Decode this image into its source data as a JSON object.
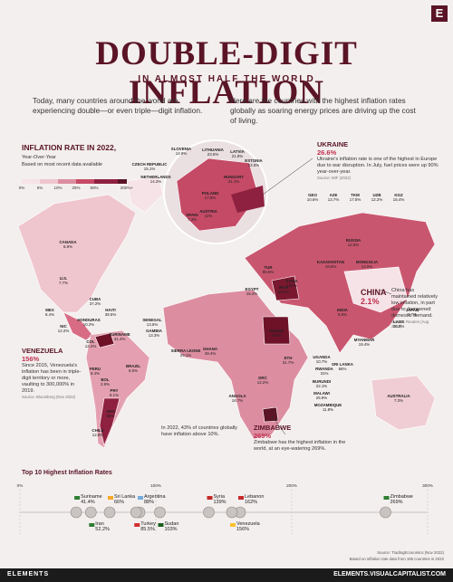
{
  "header": {
    "logo": "E",
    "title": "DOUBLE-DIGIT INFLATION",
    "subtitle": "IN ALMOST HALF THE WORLD"
  },
  "intro": [
    "Today, many countries around the world are experiencing double—or even triple—digit inflation.",
    "Here are the countries with the highest inflation rates globally as soaring energy prices are driving up the cost of living."
  ],
  "legend": {
    "title": "INFLATION RATE IN 2022,",
    "subtitle": "Year-Over-Year",
    "note": "Based on most recent data available",
    "scale": [
      "0%",
      "5%",
      "10%",
      "25%",
      "50%",
      "200%+"
    ]
  },
  "map_labels": [
    {
      "name": "CANADA",
      "value": "6.9%"
    },
    {
      "name": "U.S.",
      "value": "7.7%"
    },
    {
      "name": "MEX",
      "value": "8.4%"
    },
    {
      "name": "CUBA",
      "value": "37.2%"
    },
    {
      "name": "HAITI",
      "value": "38.5%"
    },
    {
      "name": "HONDURAS",
      "value": "10.2%"
    },
    {
      "name": "NIC",
      "value": "12.2%"
    },
    {
      "name": "COL",
      "value": "12.2%"
    },
    {
      "name": "SURINAME",
      "value": "41.4%"
    },
    {
      "name": "PERU",
      "value": "8.4%"
    },
    {
      "name": "BOL",
      "value": "2.9%"
    },
    {
      "name": "BRAZIL",
      "value": "6.5%"
    },
    {
      "name": "PRY",
      "value": "8.1%"
    },
    {
      "name": "ARG",
      "value": "88%"
    },
    {
      "name": "CHILE",
      "value": "12.8%"
    },
    {
      "name": "SLOVENIA",
      "value": "14.9%"
    },
    {
      "name": "LITHUANIA",
      "value": "23.6%"
    },
    {
      "name": "LATVIA",
      "value": "21.8%"
    },
    {
      "name": "ESTONIA",
      "value": "22.5%"
    },
    {
      "name": "CZECH REPUBLIC",
      "value": "15.1%"
    },
    {
      "name": "NETHERLANDS",
      "value": "14.2%"
    },
    {
      "name": "HUNGARY",
      "value": "21.1%"
    },
    {
      "name": "POLAND",
      "value": "17.9%"
    },
    {
      "name": "SPAIN",
      "value": "7.3%"
    },
    {
      "name": "AUSTRIA",
      "value": "11%"
    },
    {
      "name": "GEO",
      "value": "10.6%"
    },
    {
      "name": "AZE",
      "value": "13.7%"
    },
    {
      "name": "TKM",
      "value": "17.5%"
    },
    {
      "name": "UZB",
      "value": "12.2%"
    },
    {
      "name": "KGZ",
      "value": "15.4%"
    },
    {
      "name": "RUSSIA",
      "value": "12.6%"
    },
    {
      "name": "KAZAKHSTAN",
      "value": "18.8%"
    },
    {
      "name": "MONGOLIA",
      "value": "14.5%"
    },
    {
      "name": "JAPAN",
      "value": "3.7%"
    },
    {
      "name": "INDIA",
      "value": "6.8%"
    },
    {
      "name": "LAOS",
      "value": "36.8%"
    },
    {
      "name": "MYANMAR",
      "value": "19.4%"
    },
    {
      "name": "SRI LANKA",
      "value": "66%"
    },
    {
      "name": "IRAN",
      "value": "52.2%"
    },
    {
      "name": "TUR",
      "value": "85.5%"
    },
    {
      "name": "SYRIA",
      "value": "139%"
    },
    {
      "name": "EGYPT",
      "value": "16.2%"
    },
    {
      "name": "SUDAN",
      "value": "103%"
    },
    {
      "name": "ETH",
      "value": "31.7%"
    },
    {
      "name": "UGANDA",
      "value": "10.7%"
    },
    {
      "name": "RWANDA",
      "value": "31%"
    },
    {
      "name": "BURUNDI",
      "value": "22.1%"
    },
    {
      "name": "MALAWI",
      "value": "25.9%"
    },
    {
      "name": "MOZAMBIQUE",
      "value": "11.8%"
    },
    {
      "name": "DRC",
      "value": "12.2%"
    },
    {
      "name": "ANGOLA",
      "value": "16.7%"
    },
    {
      "name": "GHANA",
      "value": "49.4%"
    },
    {
      "name": "SIERRA LEONE",
      "value": "29.1%"
    },
    {
      "name": "SENEGAL",
      "value": "13.6%"
    },
    {
      "name": "GAMBIA",
      "value": "13.3%"
    },
    {
      "name": "AUSTRALIA",
      "value": "7.3%"
    }
  ],
  "callouts": {
    "ukraine": {
      "name": "UKRAINE",
      "value": "26.6%",
      "text": "Ukraine's inflation rate is one of the highest in Europe due to war disruption. In July, fuel prices were up 90% year-over-year.",
      "source": "Source: IMF (2022)"
    },
    "china": {
      "name": "CHINA",
      "value": "2.1%",
      "text": "China has maintained relatively low inflation, in part due to dampened domestic demand.",
      "source": "Source: Reuters (Aug 2022)"
    },
    "venezuela": {
      "name": "VENEZUELA",
      "value": "156%",
      "text": "Since 2015, Venezuela's inflation has been in triple-digit territory or more, vaulting to 300,000% in 2019.",
      "source": "Source: Bloomberg (Nov 2022)"
    },
    "zimbabwe": {
      "name": "ZIMBABWE",
      "value": "269%",
      "text": "Zimbabwe has the highest inflation in the world, at an eye-watering 269%."
    },
    "note": "In 2022, 43% of countries globally have inflation above 10%."
  },
  "top10": {
    "title": "Top 10 Highest Inflation Rates",
    "ticks": [
      {
        "value": 0,
        "label": "0%"
      },
      {
        "value": 100,
        "label": "100%"
      },
      {
        "value": 200,
        "label": "200%"
      },
      {
        "value": 300,
        "label": "300%"
      }
    ],
    "upper": [
      {
        "name": "Suriname",
        "value": 41.4,
        "label": "41.4%"
      },
      {
        "name": "Sri Lanka",
        "value": 66,
        "label": "66%"
      },
      {
        "name": "Argentina",
        "value": 88,
        "label": "88%"
      },
      {
        "name": "Syria",
        "value": 139,
        "label": "139%"
      },
      {
        "name": "Lebanon",
        "value": 162,
        "label": "162%"
      },
      {
        "name": "Zimbabwe",
        "value": 269,
        "label": "269%"
      }
    ],
    "lower": [
      {
        "name": "Iran",
        "value": 52.2,
        "label": "52.2%"
      },
      {
        "name": "Turkey",
        "value": 85.5,
        "label": "85.5%"
      },
      {
        "name": "Sudan",
        "value": 103,
        "label": "103%"
      },
      {
        "name": "Venezuela",
        "value": 156,
        "label": "156%"
      }
    ]
  },
  "footer": {
    "source": "Source: TradingEconomics (Nov 2022)",
    "note": "Based on inflation rate data from 186 countries in 2022",
    "brand": "ELEMENTS",
    "url": "ELEMENTS.VISUALCAPITALIST.COM"
  }
}
